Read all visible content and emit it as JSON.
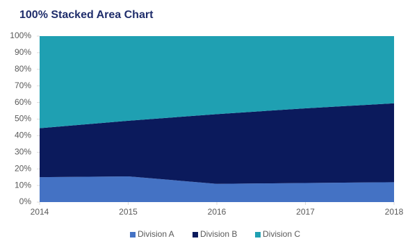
{
  "chart_data": {
    "type": "stacked_area_100",
    "title": "100% Stacked Area Chart",
    "x": [
      2014,
      2015,
      2016,
      2017,
      2018
    ],
    "series": [
      {
        "name": "Division A",
        "color": "#4472c4",
        "values": [
          15,
          15.5,
          11,
          11.5,
          12
        ]
      },
      {
        "name": "Division B",
        "color": "#0b1a5c",
        "values": [
          29.5,
          33.5,
          42,
          45,
          47.5
        ]
      },
      {
        "name": "Division C",
        "color": "#1fa0b2",
        "values": [
          55.5,
          51,
          47,
          43.5,
          40.5
        ]
      }
    ],
    "xlim": [
      2014,
      2018
    ],
    "xticks": [
      2014,
      2015,
      2016,
      2017,
      2018
    ],
    "ylim": [
      0,
      100
    ],
    "yticks": [
      {
        "value": 0,
        "label": "0%"
      },
      {
        "value": 10,
        "label": "10%"
      },
      {
        "value": 20,
        "label": "20%"
      },
      {
        "value": 30,
        "label": "30%"
      },
      {
        "value": 40,
        "label": "40%"
      },
      {
        "value": 50,
        "label": "50%"
      },
      {
        "value": 60,
        "label": "60%"
      },
      {
        "value": 70,
        "label": "70%"
      },
      {
        "value": 80,
        "label": "80%"
      },
      {
        "value": 90,
        "label": "90%"
      },
      {
        "value": 100,
        "label": "100%"
      }
    ],
    "grid": false,
    "legend": "bottom"
  }
}
